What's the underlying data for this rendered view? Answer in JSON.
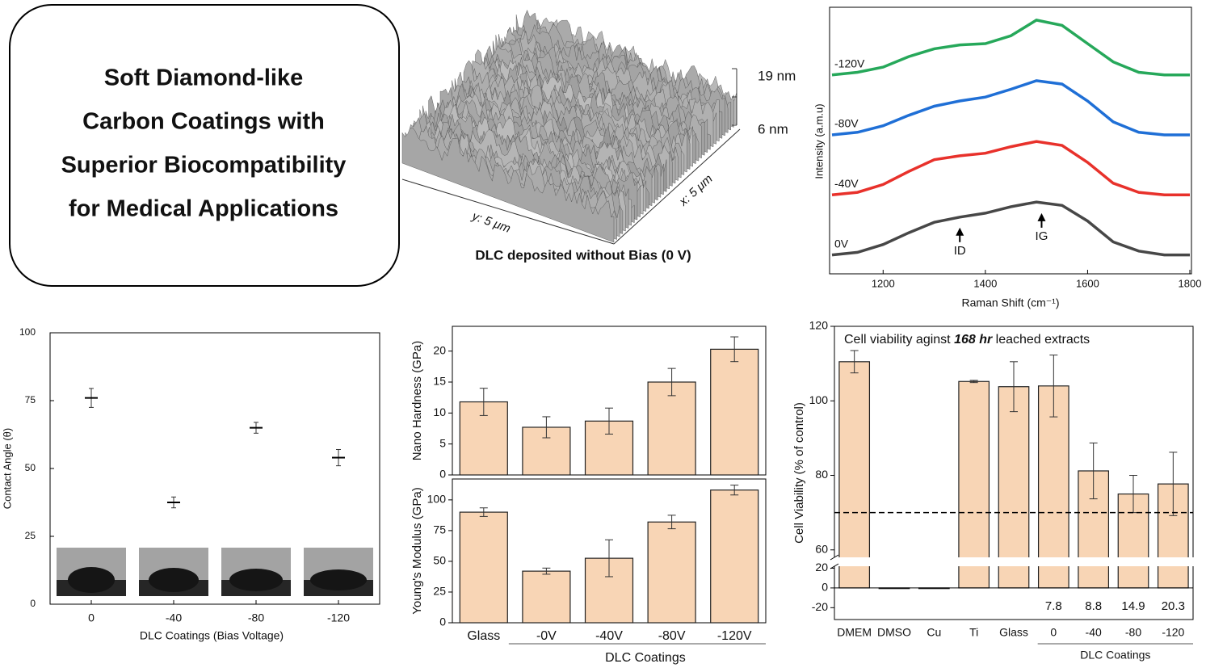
{
  "title_box": {
    "lines": [
      "Soft Diamond-like",
      "Carbon Coatings with",
      "Superior Biocompatibility",
      "for Medical Applications"
    ]
  },
  "afm_image": {
    "caption": "DLC deposited without Bias (0 V)",
    "z_max": "19 nm",
    "z_min": "6 nm",
    "y_axis": "y: 5 μm",
    "x_axis": "x: 5 μm"
  },
  "chart_data": [
    {
      "type": "line",
      "x_label": "Raman Shift (cm⁻¹)",
      "y_label": "Intensity (a.m.u)",
      "x": [
        1100,
        1150,
        1200,
        1250,
        1300,
        1350,
        1400,
        1450,
        1500,
        1550,
        1600,
        1650,
        1700,
        1750,
        1800
      ],
      "xlim": [
        1100,
        1800
      ],
      "xticks": [
        1200,
        1400,
        1600,
        1800
      ],
      "ylim": [
        0,
        100
      ],
      "series": [
        {
          "name": "0V",
          "color": "#474747",
          "values": [
            6,
            7,
            10,
            14.5,
            18.5,
            20.5,
            22,
            24.5,
            26.3,
            25,
            19,
            11,
            7.5,
            6,
            6
          ]
        },
        {
          "name": "-40V",
          "color": "#e8312b",
          "values": [
            29,
            30,
            33,
            38,
            42.5,
            44,
            45,
            47.5,
            49.5,
            48,
            41.5,
            33.5,
            30,
            29,
            29
          ]
        },
        {
          "name": "-80V",
          "color": "#1f6fd6",
          "values": [
            52,
            53,
            55.5,
            59.5,
            63,
            65,
            66.5,
            69.5,
            72.8,
            71.5,
            65,
            57,
            53,
            52,
            52
          ]
        },
        {
          "name": "-120V",
          "color": "#26a85a",
          "values": [
            75,
            76,
            78,
            82,
            85,
            86.5,
            87,
            90,
            96,
            94,
            87,
            80,
            76,
            75,
            75
          ]
        }
      ],
      "annotations": [
        {
          "text": "ID",
          "x": 1350
        },
        {
          "text": "IG",
          "x": 1510
        }
      ]
    },
    {
      "type": "scatter",
      "x_label": "DLC Coatings (Bias Voltage)",
      "y_label": "Contact Angle (θ)",
      "categories": [
        "0",
        "-40",
        "-80",
        "-120"
      ],
      "values": [
        76,
        37.5,
        65,
        54
      ],
      "errors": [
        3.5,
        2,
        2,
        3
      ],
      "ylim": [
        0,
        100
      ],
      "yticks": [
        0,
        25,
        50,
        75,
        100
      ],
      "color": "#000000"
    },
    {
      "type": "bar",
      "y_label": "Nano Hardness (GPa)",
      "values": [
        11.8,
        7.7,
        8.7,
        15,
        20.3
      ],
      "errors": [
        2.2,
        1.7,
        2.1,
        2.2,
        2
      ],
      "ylim": [
        0,
        24
      ],
      "yticks": [
        0,
        5,
        10,
        15,
        20
      ],
      "color": "#f8d5b5"
    },
    {
      "type": "bar",
      "y_label": "Young's Modulus (GPa)",
      "x_label": "DLC Coatings",
      "categories": [
        "Glass",
        "-0V",
        "-40V",
        "-80V",
        "-120V"
      ],
      "values": [
        90,
        42,
        52.5,
        82,
        108
      ],
      "errors": [
        3.5,
        2.5,
        15,
        5.5,
        4
      ],
      "ylim": [
        0,
        117
      ],
      "yticks": [
        0,
        25,
        50,
        75,
        100
      ],
      "color": "#f8d5b5"
    },
    {
      "type": "bar",
      "title": [
        "Cell viability aginst ",
        "168 hr",
        " leached extracts"
      ],
      "y_label": "Cell Viability (% of control)",
      "group_label": "DLC Coatings",
      "categories": [
        "DMEM",
        "DMSO",
        "Cu",
        "Ti",
        "Glass",
        "0",
        "-40",
        "-80",
        "-120"
      ],
      "values": [
        110.5,
        0,
        -0.3,
        105.2,
        103.8,
        104,
        81.2,
        75,
        77.7
      ],
      "errors": [
        3,
        0,
        0,
        0.3,
        6.7,
        8.3,
        7.5,
        5,
        8.5
      ],
      "annotations": [
        null,
        null,
        null,
        null,
        null,
        7.8,
        8.8,
        14.9,
        20.3
      ],
      "threshold": 70,
      "ylim": [
        -32,
        120
      ],
      "axis_break": [
        22,
        58
      ],
      "yticks": [
        -20,
        0,
        20,
        60,
        80,
        100,
        120
      ],
      "color": "#f8d5b5"
    }
  ]
}
